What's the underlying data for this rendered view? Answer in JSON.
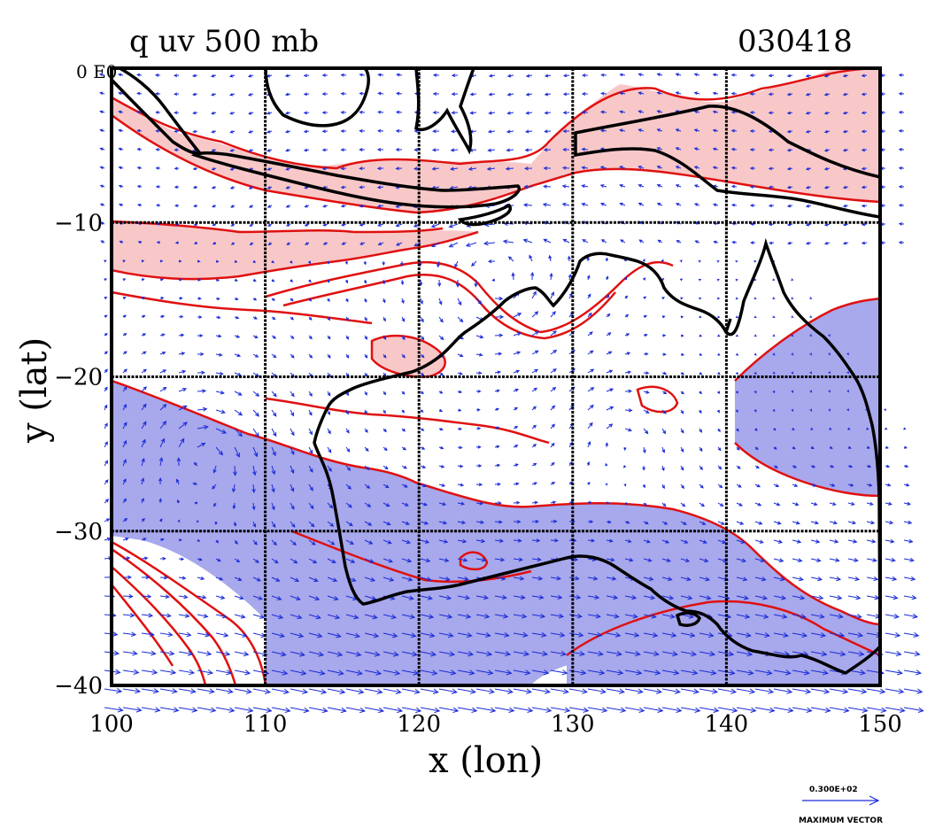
{
  "title_left": "q uv 500 mb",
  "title_right": "030418",
  "corner_label": "0 E0",
  "xlabel": "x (lon)",
  "ylabel": "y (lat)",
  "x_ticks": [
    "100",
    "110",
    "120",
    "130",
    "140",
    "150"
  ],
  "y_ticks": [
    "−10",
    "−20",
    "−30",
    "−40"
  ],
  "vector_legend": {
    "value": "0.300E+02",
    "label": "MAXIMUM VECTOR"
  },
  "colors": {
    "positive_fill": "#f8c8c8",
    "negative_fill": "#a8a8ec",
    "contour": "#e01010",
    "vectors": "#1a2bd8",
    "coastline": "#000000",
    "grid": "#000000"
  },
  "chart_data": {
    "type": "map",
    "x_range": [
      100,
      150
    ],
    "y_range": [
      -40,
      0
    ],
    "x_ticks": [
      100,
      110,
      120,
      130,
      140,
      150
    ],
    "y_ticks": [
      0,
      -10,
      -20,
      -30,
      -40
    ],
    "grid": true,
    "fields": [
      "specific humidity q (shaded + contours)",
      "wind vectors uv"
    ],
    "level": "500 mb",
    "date": "030418"
  }
}
